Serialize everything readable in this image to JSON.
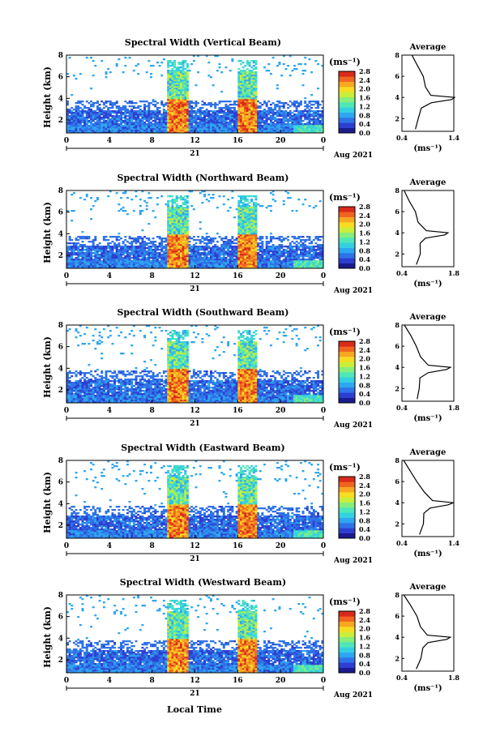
{
  "figure": {
    "colorbar_unit": "(ms⁻¹)",
    "avg_title": "Average",
    "avg_xlabel": "(ms⁻¹)",
    "date_label": "Aug 2021",
    "day_label": "21",
    "xlabel": "Local Time",
    "ylabel": "Height (km)",
    "colors": [
      "#1b1b8e",
      "#2d3fd0",
      "#2f73e8",
      "#2fa6f0",
      "#35d0e0",
      "#4fe6b8",
      "#86ee7a",
      "#c9ee3a",
      "#f6dc23",
      "#f7a821",
      "#f06420",
      "#d82a1a"
    ]
  },
  "chart_data": [
    {
      "type": "heatmap",
      "title": "Spectral Width (Vertical Beam)",
      "x_ticks": [
        "0",
        "4",
        "8",
        "12",
        "16",
        "20",
        "0"
      ],
      "y_ticks": [
        "2",
        "4",
        "6",
        "8"
      ],
      "ylim": [
        0.8,
        8.0
      ],
      "colorbar_ticks": [
        "0.0",
        "0.4",
        "0.8",
        "1.2",
        "1.6",
        "2.0",
        "2.4",
        "2.8"
      ],
      "average": {
        "x_ticks": [
          "0.4",
          "1.4"
        ],
        "xlim": [
          0.4,
          1.4
        ],
        "y_ticks": [
          "2",
          "4",
          "6",
          "8"
        ],
        "height": [
          1.0,
          2.0,
          3.0,
          3.5,
          3.8,
          4.0,
          4.2,
          5.0,
          6.0,
          7.0,
          8.0
        ],
        "width": [
          0.65,
          0.72,
          0.78,
          0.95,
          1.35,
          1.4,
          0.95,
          0.85,
          0.8,
          0.7,
          0.6
        ]
      }
    },
    {
      "type": "heatmap",
      "title": "Spectral Width (Northward Beam)",
      "x_ticks": [
        "0",
        "4",
        "8",
        "12",
        "16",
        "20",
        "0"
      ],
      "y_ticks": [
        "2",
        "4",
        "6",
        "8"
      ],
      "ylim": [
        0.8,
        8.0
      ],
      "colorbar_ticks": [
        "0.0",
        "0.4",
        "0.8",
        "1.2",
        "1.6",
        "2.0",
        "2.4",
        "2.8"
      ],
      "average": {
        "x_ticks": [
          "0.4",
          "1.8"
        ],
        "xlim": [
          0.4,
          1.8
        ],
        "y_ticks": [
          "2",
          "4",
          "6",
          "8"
        ],
        "height": [
          1.0,
          2.0,
          3.0,
          3.5,
          3.8,
          4.0,
          4.2,
          5.0,
          6.0,
          7.0,
          8.0
        ],
        "width": [
          0.8,
          0.88,
          0.9,
          1.05,
          1.55,
          1.65,
          1.05,
          0.85,
          0.75,
          0.6,
          0.45
        ]
      }
    },
    {
      "type": "heatmap",
      "title": "Spectral Width (Southward Beam)",
      "x_ticks": [
        "0",
        "4",
        "8",
        "12",
        "16",
        "20",
        "0"
      ],
      "y_ticks": [
        "2",
        "4",
        "6",
        "8"
      ],
      "ylim": [
        0.8,
        8.0
      ],
      "colorbar_ticks": [
        "0.0",
        "0.4",
        "0.8",
        "1.2",
        "1.6",
        "2.0",
        "2.4",
        "2.8"
      ],
      "average": {
        "x_ticks": [
          "0.4",
          "1.8"
        ],
        "xlim": [
          0.4,
          1.8
        ],
        "y_ticks": [
          "2",
          "4",
          "6",
          "8"
        ],
        "height": [
          1.0,
          2.0,
          3.0,
          3.5,
          3.8,
          4.0,
          4.2,
          5.0,
          6.0,
          7.0,
          8.0
        ],
        "width": [
          0.8,
          0.88,
          0.9,
          1.1,
          1.6,
          1.7,
          1.1,
          0.9,
          0.8,
          0.65,
          0.45
        ]
      }
    },
    {
      "type": "heatmap",
      "title": "Spectral Width (Eastward Beam)",
      "x_ticks": [
        "0",
        "4",
        "8",
        "12",
        "16",
        "20",
        "0"
      ],
      "y_ticks": [
        "2",
        "4",
        "6",
        "8"
      ],
      "ylim": [
        0.8,
        8.0
      ],
      "colorbar_ticks": [
        "0.0",
        "0.4",
        "0.8",
        "1.2",
        "1.6",
        "2.0",
        "2.4",
        "2.8"
      ],
      "average": {
        "x_ticks": [
          "0.4",
          "1.4"
        ],
        "xlim": [
          0.4,
          1.4
        ],
        "y_ticks": [
          "2",
          "4",
          "6",
          "8"
        ],
        "height": [
          1.0,
          2.0,
          3.0,
          3.5,
          3.8,
          4.0,
          4.2,
          5.0,
          6.0,
          7.0,
          8.0
        ],
        "width": [
          0.75,
          0.8,
          0.82,
          0.95,
          1.3,
          1.38,
          1.0,
          0.82,
          0.7,
          0.55,
          0.42
        ]
      }
    },
    {
      "type": "heatmap",
      "title": "Spectral Width (Westward Beam)",
      "x_ticks": [
        "0",
        "4",
        "8",
        "12",
        "16",
        "20",
        "0"
      ],
      "y_ticks": [
        "2",
        "4",
        "6",
        "8"
      ],
      "ylim": [
        0.8,
        8.0
      ],
      "colorbar_ticks": [
        "0.0",
        "0.4",
        "0.8",
        "1.2",
        "1.6",
        "2.0",
        "2.4",
        "2.8"
      ],
      "average": {
        "x_ticks": [
          "0.4",
          "1.8"
        ],
        "xlim": [
          0.4,
          1.8
        ],
        "y_ticks": [
          "2",
          "4",
          "6",
          "8"
        ],
        "height": [
          1.0,
          2.0,
          3.0,
          3.5,
          3.8,
          4.0,
          4.2,
          5.0,
          6.0,
          7.0,
          8.0
        ],
        "width": [
          0.8,
          0.9,
          0.95,
          1.1,
          1.62,
          1.7,
          1.1,
          0.9,
          0.8,
          0.65,
          0.45
        ]
      }
    }
  ]
}
